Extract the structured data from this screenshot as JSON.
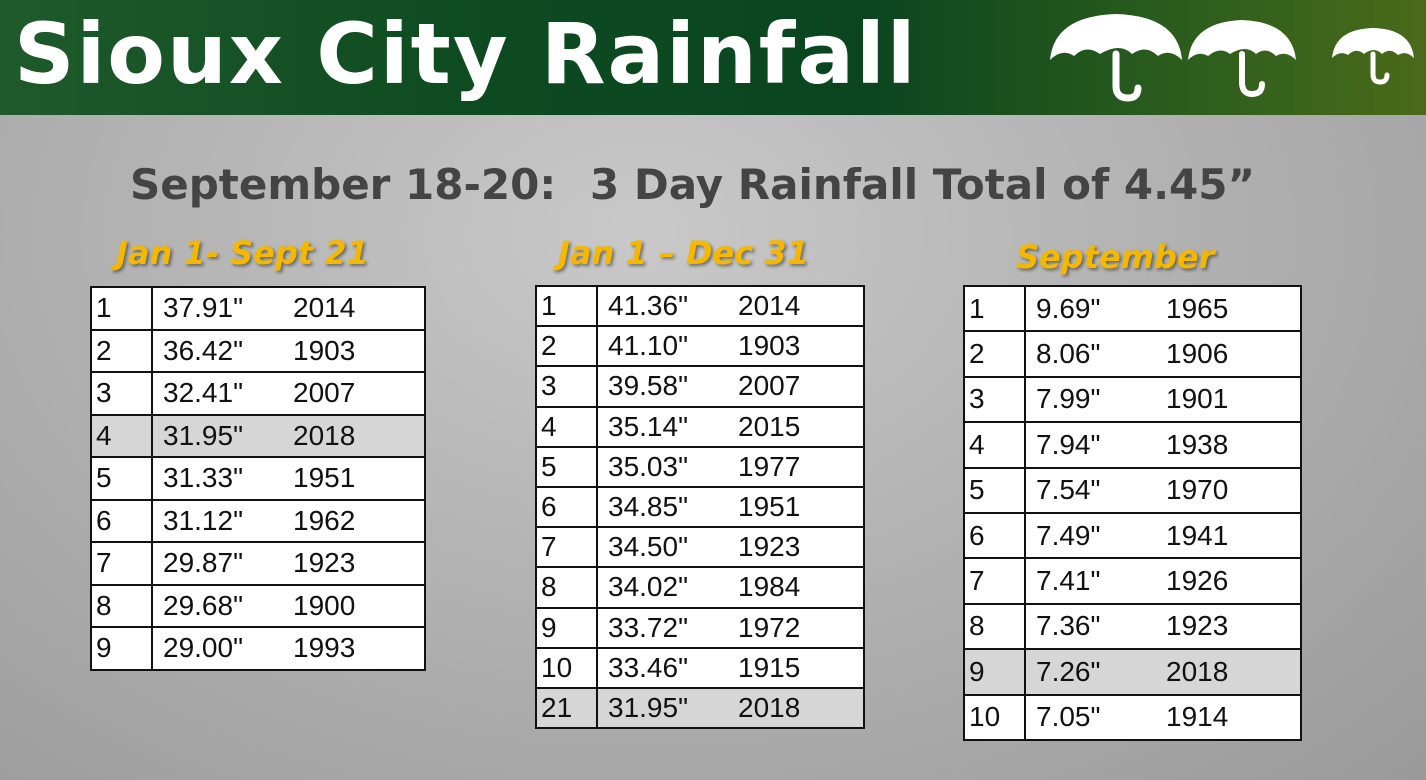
{
  "header": {
    "title": "Sioux City Rainfall",
    "umbrella_icons": [
      "umbrella-icon",
      "umbrella-icon",
      "umbrella-icon"
    ]
  },
  "subtitle": {
    "left": "September 18-20:",
    "right": "3 Day Rainfall Total of 4.45”"
  },
  "tables": [
    {
      "title": "Jan 1-  Sept 21",
      "rows": [
        {
          "rank": "1",
          "value": "37.91\"",
          "year": "2014"
        },
        {
          "rank": "2",
          "value": "36.42\"",
          "year": "1903"
        },
        {
          "rank": "3",
          "value": "32.41\"",
          "year": "2007"
        },
        {
          "rank": "4",
          "value": "31.95\"",
          "year": "2018",
          "highlight": true
        },
        {
          "rank": "5",
          "value": "31.33\"",
          "year": "1951"
        },
        {
          "rank": "6",
          "value": "31.12\"",
          "year": "1962"
        },
        {
          "rank": "7",
          "value": "29.87\"",
          "year": "1923"
        },
        {
          "rank": "8",
          "value": "29.68\"",
          "year": "1900"
        },
        {
          "rank": "9",
          "value": "29.00\"",
          "year": "1993"
        }
      ]
    },
    {
      "title": "Jan 1 – Dec 31",
      "rows": [
        {
          "rank": "1",
          "value": "41.36\"",
          "year": "2014"
        },
        {
          "rank": "2",
          "value": "41.10\"",
          "year": "1903"
        },
        {
          "rank": "3",
          "value": "39.58\"",
          "year": "2007"
        },
        {
          "rank": "4",
          "value": "35.14\"",
          "year": "2015"
        },
        {
          "rank": "5",
          "value": "35.03\"",
          "year": "1977"
        },
        {
          "rank": "6",
          "value": "34.85\"",
          "year": "1951"
        },
        {
          "rank": "7",
          "value": "34.50\"",
          "year": "1923"
        },
        {
          "rank": "8",
          "value": "34.02\"",
          "year": "1984"
        },
        {
          "rank": "9",
          "value": "33.72\"",
          "year": "1972"
        },
        {
          "rank": "10",
          "value": "33.46\"",
          "year": "1915"
        },
        {
          "rank": "21",
          "value": "31.95\"",
          "year": "2018",
          "highlight": true
        }
      ]
    },
    {
      "title": "September",
      "rows": [
        {
          "rank": "1",
          "value": "9.69\"",
          "year": "1965"
        },
        {
          "rank": "2",
          "value": "8.06\"",
          "year": "1906"
        },
        {
          "rank": "3",
          "value": "7.99\"",
          "year": "1901"
        },
        {
          "rank": "4",
          "value": "7.94\"",
          "year": "1938"
        },
        {
          "rank": "5",
          "value": "7.54\"",
          "year": "1970"
        },
        {
          "rank": "6",
          "value": "7.49\"",
          "year": "1941"
        },
        {
          "rank": "7",
          "value": "7.41\"",
          "year": "1926"
        },
        {
          "rank": "8",
          "value": "7.36\"",
          "year": "1923"
        },
        {
          "rank": "9",
          "value": "7.26\"",
          "year": "2018",
          "highlight": true
        },
        {
          "rank": "10",
          "value": "7.05\"",
          "year": "1914"
        }
      ]
    }
  ],
  "colors": {
    "banner": "#0d4a20",
    "title_text": "#ffffff",
    "subtitle_text": "#444444",
    "column_title": "#f5b800",
    "highlight_row": "#d6d6d6"
  }
}
